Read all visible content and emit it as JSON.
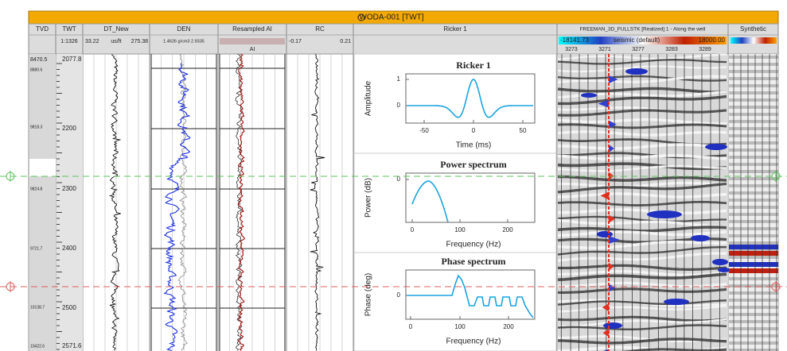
{
  "header": {
    "title": "WODA-001 [TWT]"
  },
  "columns": [
    {
      "name": "TVD"
    },
    {
      "name": "TWT",
      "scale": "1:1326"
    },
    {
      "name": "DT_New",
      "min": "33.22",
      "unit": "us/ft",
      "max": "275.38"
    },
    {
      "name": "DEN",
      "range": "1.4626 g/cm3 2.9335"
    },
    {
      "name": "Resampled AI",
      "sub": "AI"
    },
    {
      "name": "RC",
      "min": "-0.17",
      "max": "0.21"
    },
    {
      "name": "Ricker 1"
    },
    {
      "name": "FREEMAN_3D_FULLSTK [Realized] 1 - Along the well",
      "min": "-18141.73",
      "colormap": "seismic (default)",
      "max": "18000.00",
      "traces": [
        "3273",
        "3271",
        "3277",
        "3283",
        "3289"
      ]
    },
    {
      "name": "Synthetic"
    }
  ],
  "tvd_labels": [
    "8470.5",
    "8880.6",
    "9818.3",
    "9824.8",
    "9721.7",
    "10138.7",
    "10422.6"
  ],
  "twt_labels": [
    "2077.8",
    "2200",
    "2300",
    "2400",
    "2500",
    "2571.6"
  ],
  "wavelet_plots": [
    {
      "title": "Ricker 1",
      "ylabel": "Amplitude",
      "yticks": [
        "1",
        "0"
      ],
      "xticks": [
        "-50",
        "0",
        "50"
      ],
      "xlabel": "Time (ms)"
    },
    {
      "title": "Power spectrum",
      "ylabel": "Power (dB)",
      "yticks": [
        "0"
      ],
      "xticks": [
        "0",
        "100",
        "200"
      ],
      "xlabel": "Frequency (Hz)"
    },
    {
      "title": "Phase spectrum",
      "ylabel": "Phase (deg)",
      "yticks": [
        "0"
      ],
      "xticks": [
        "0",
        "100",
        "200"
      ],
      "xlabel": "Frequency (Hz)"
    }
  ]
}
